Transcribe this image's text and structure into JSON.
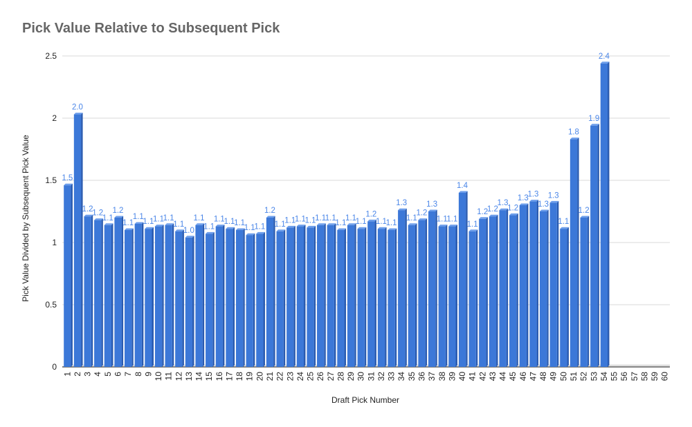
{
  "chart_data": {
    "type": "bar",
    "title": "Pick Value Relative to Subsequent Pick",
    "xlabel": "Draft Pick Number",
    "ylabel": "Pick Value Divided by Subsequent Pick Value",
    "ylim": [
      0,
      2.5
    ],
    "yticks": [
      "0",
      "0.5",
      "1",
      "1.5",
      "2",
      "2.5"
    ],
    "grid": true,
    "legend": "none",
    "categories": [
      "1",
      "2",
      "3",
      "4",
      "5",
      "6",
      "7",
      "8",
      "9",
      "10",
      "11",
      "12",
      "13",
      "14",
      "15",
      "16",
      "17",
      "18",
      "19",
      "20",
      "21",
      "22",
      "23",
      "24",
      "25",
      "26",
      "27",
      "28",
      "29",
      "30",
      "31",
      "32",
      "33",
      "34",
      "35",
      "36",
      "37",
      "38",
      "39",
      "40",
      "41",
      "42",
      "43",
      "44",
      "45",
      "46",
      "47",
      "48",
      "49",
      "50",
      "51",
      "52",
      "53",
      "54",
      "55",
      "56",
      "57",
      "58",
      "59",
      "60"
    ],
    "values": [
      1.46,
      2.03,
      1.21,
      1.18,
      1.14,
      1.2,
      1.1,
      1.15,
      1.11,
      1.13,
      1.14,
      1.09,
      1.04,
      1.14,
      1.07,
      1.13,
      1.11,
      1.1,
      1.06,
      1.07,
      1.2,
      1.09,
      1.12,
      1.13,
      1.12,
      1.14,
      1.14,
      1.1,
      1.14,
      1.11,
      1.17,
      1.11,
      1.1,
      1.26,
      1.14,
      1.18,
      1.25,
      1.13,
      1.13,
      1.4,
      1.09,
      1.19,
      1.21,
      1.26,
      1.22,
      1.3,
      1.33,
      1.25,
      1.32,
      1.11,
      1.83,
      1.2,
      1.94,
      2.44,
      null,
      null,
      null,
      null,
      null,
      null
    ],
    "data_labels": [
      "1.5",
      "2.0",
      "1.2",
      "1.2",
      "1.1",
      "1.2",
      "1.1",
      "1.1",
      "1.1",
      "1.1",
      "1.1",
      "1.1",
      "1.0",
      "1.1",
      "1.1",
      "1.1",
      "1.1",
      "1.1",
      "1.1",
      "1.1",
      "1.2",
      "1.1",
      "1.1",
      "1.1",
      "1.1",
      "1.1",
      "1.1",
      "1.1",
      "1.1",
      "1.1",
      "1.2",
      "1.1",
      "1.1",
      "1.3",
      "1.1",
      "1.2",
      "1.3",
      "1.1",
      "1.1",
      "1.4",
      "1.1",
      "1.2",
      "1.2",
      "1.3",
      "1.2",
      "1.3",
      "1.3",
      "1.3",
      "1.3",
      "1.1",
      "1.8",
      "1.2",
      "1.9",
      "2.4",
      "",
      "",
      "",
      "",
      "",
      ""
    ],
    "colors": {
      "bar": "#3c78d8",
      "bar_top": "#6d9eeb",
      "bar_side": "#2a5bb0",
      "label": "#4a86e8",
      "grid": "#d9d9d9",
      "axis": "#333333"
    }
  }
}
